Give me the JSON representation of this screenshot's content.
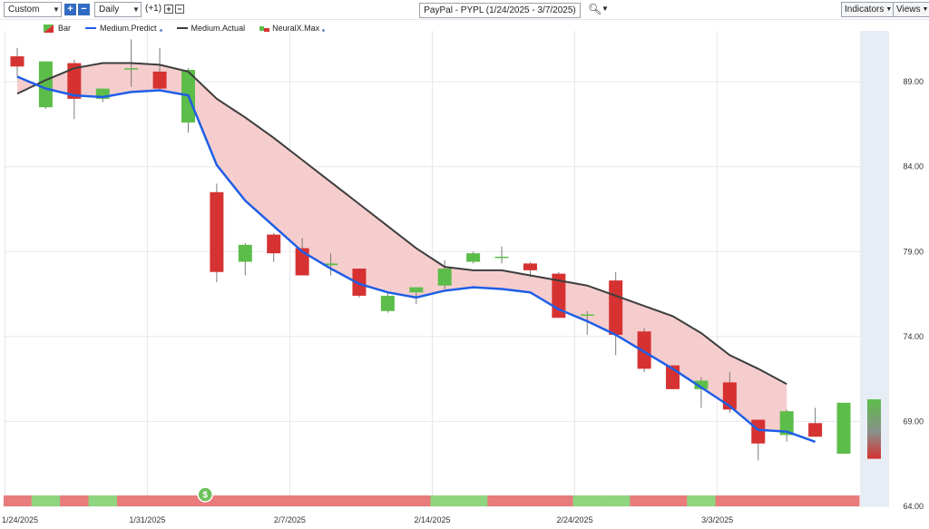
{
  "toolbar": {
    "range_select": "Custom",
    "interval_select": "Daily",
    "offset_label": "(+1)",
    "symbol_label": "PayPal - PYPL (1/24/2025 - 3/7/2025)",
    "indicators_label": "Indicators",
    "views_label": "Views"
  },
  "legend": [
    {
      "label": "Bar"
    },
    {
      "label": "Medium.Predict"
    },
    {
      "label": "Medium.Actual"
    },
    {
      "label": "NeuralX.Max"
    }
  ],
  "colors": {
    "up": "#5cbd4a",
    "down": "#d63232",
    "predict": "#1f5ee6",
    "actual": "#3d3d3d",
    "fill": "#f5c4c4",
    "strip_up": "#8fd47e",
    "strip_down": "#e87c7c"
  },
  "chart_data": {
    "type": "candlestick",
    "ylim": [
      64,
      92
    ],
    "yticks": [
      "89.00",
      "84.00",
      "79.00",
      "74.00",
      "69.00",
      "64.00"
    ],
    "x_labels": [
      "1/24/2025",
      "1/31/2025",
      "2/7/2025",
      "2/14/2025",
      "2/24/2025",
      "3/3/2025"
    ],
    "dates": [
      "1/24",
      "1/27",
      "1/28",
      "1/29",
      "1/30",
      "1/31",
      "2/3",
      "2/4",
      "2/5",
      "2/6",
      "2/7",
      "2/10",
      "2/11",
      "2/12",
      "2/13",
      "2/14",
      "2/18",
      "2/19",
      "2/20",
      "2/21",
      "2/24",
      "2/25",
      "2/26",
      "2/27",
      "2/28",
      "3/3",
      "3/4",
      "3/5",
      "3/6",
      "3/7"
    ],
    "candles": [
      {
        "o": 90.5,
        "h": 91.0,
        "l": 89.3,
        "c": 89.9
      },
      {
        "o": 87.5,
        "h": 90.2,
        "l": 87.4,
        "c": 90.2
      },
      {
        "o": 90.1,
        "h": 90.3,
        "l": 86.8,
        "c": 88.0
      },
      {
        "o": 88.0,
        "h": 88.6,
        "l": 87.8,
        "c": 88.6
      },
      {
        "o": 89.8,
        "h": 91.5,
        "l": 88.7,
        "c": 89.8
      },
      {
        "o": 89.6,
        "h": 91.0,
        "l": 88.5,
        "c": 88.6
      },
      {
        "o": 86.6,
        "h": 89.8,
        "l": 86.0,
        "c": 89.7
      },
      {
        "o": 82.5,
        "h": 83.0,
        "l": 77.2,
        "c": 77.8
      },
      {
        "o": 78.4,
        "h": 79.5,
        "l": 77.6,
        "c": 79.4
      },
      {
        "o": 80.0,
        "h": 80.1,
        "l": 78.4,
        "c": 78.9
      },
      {
        "o": 79.2,
        "h": 79.8,
        "l": 77.6,
        "c": 77.6
      },
      {
        "o": 78.2,
        "h": 78.9,
        "l": 77.6,
        "c": 78.3
      },
      {
        "o": 78.0,
        "h": 78.0,
        "l": 76.3,
        "c": 76.4
      },
      {
        "o": 75.5,
        "h": 76.6,
        "l": 75.4,
        "c": 76.4
      },
      {
        "o": 76.6,
        "h": 76.9,
        "l": 75.9,
        "c": 76.9
      },
      {
        "o": 77.0,
        "h": 78.5,
        "l": 76.8,
        "c": 78.0
      },
      {
        "o": 78.4,
        "h": 79.0,
        "l": 78.3,
        "c": 78.9
      },
      {
        "o": 78.7,
        "h": 79.3,
        "l": 78.3,
        "c": 78.7
      },
      {
        "o": 78.3,
        "h": 78.4,
        "l": 77.5,
        "c": 77.9
      },
      {
        "o": 77.7,
        "h": 77.8,
        "l": 75.1,
        "c": 75.1
      },
      {
        "o": 75.3,
        "h": 75.5,
        "l": 74.1,
        "c": 75.3
      },
      {
        "o": 77.3,
        "h": 77.8,
        "l": 72.9,
        "c": 74.1
      },
      {
        "o": 74.3,
        "h": 74.5,
        "l": 71.9,
        "c": 72.1
      },
      {
        "o": 72.3,
        "h": 72.3,
        "l": 70.9,
        "c": 70.9
      },
      {
        "o": 70.9,
        "h": 71.6,
        "l": 69.8,
        "c": 71.4
      },
      {
        "o": 71.3,
        "h": 71.9,
        "l": 69.5,
        "c": 69.7
      },
      {
        "o": 69.1,
        "h": 69.1,
        "l": 66.7,
        "c": 67.7
      },
      {
        "o": 68.2,
        "h": 69.7,
        "l": 67.8,
        "c": 69.6
      },
      {
        "o": 68.9,
        "h": 69.8,
        "l": 68.1,
        "c": 68.1
      },
      {
        "o": 67.1,
        "h": 70.1,
        "l": 67.1,
        "c": 70.1
      }
    ],
    "predict": [
      89.3,
      88.6,
      88.2,
      88.1,
      88.4,
      88.5,
      88.2,
      84.1,
      82.0,
      80.5,
      79.0,
      78.0,
      77.1,
      76.6,
      76.3,
      76.7,
      76.9,
      76.8,
      76.6,
      75.6,
      74.9,
      74.1,
      73.1,
      72.1,
      71.0,
      69.9,
      68.5,
      68.4,
      67.8,
      null
    ],
    "actual": [
      88.3,
      89.1,
      89.8,
      90.1,
      90.1,
      90.0,
      89.6,
      88.0,
      86.9,
      85.7,
      84.4,
      83.1,
      81.8,
      80.5,
      79.2,
      78.1,
      77.9,
      77.9,
      77.6,
      77.3,
      77.0,
      76.4,
      75.8,
      75.2,
      74.2,
      72.9,
      72.1,
      71.2,
      null,
      null
    ],
    "strip": [
      "down",
      "up",
      "down",
      "up",
      "down",
      "down",
      "down",
      "down",
      "down",
      "down",
      "down",
      "down",
      "down",
      "down",
      "down",
      "up",
      "up",
      "down",
      "down",
      "down",
      "up",
      "up",
      "down",
      "down",
      "up",
      "down",
      "down",
      "down",
      "down",
      "down"
    ],
    "neuralx_max": {
      "from": 66.8,
      "to": 70.3
    }
  }
}
